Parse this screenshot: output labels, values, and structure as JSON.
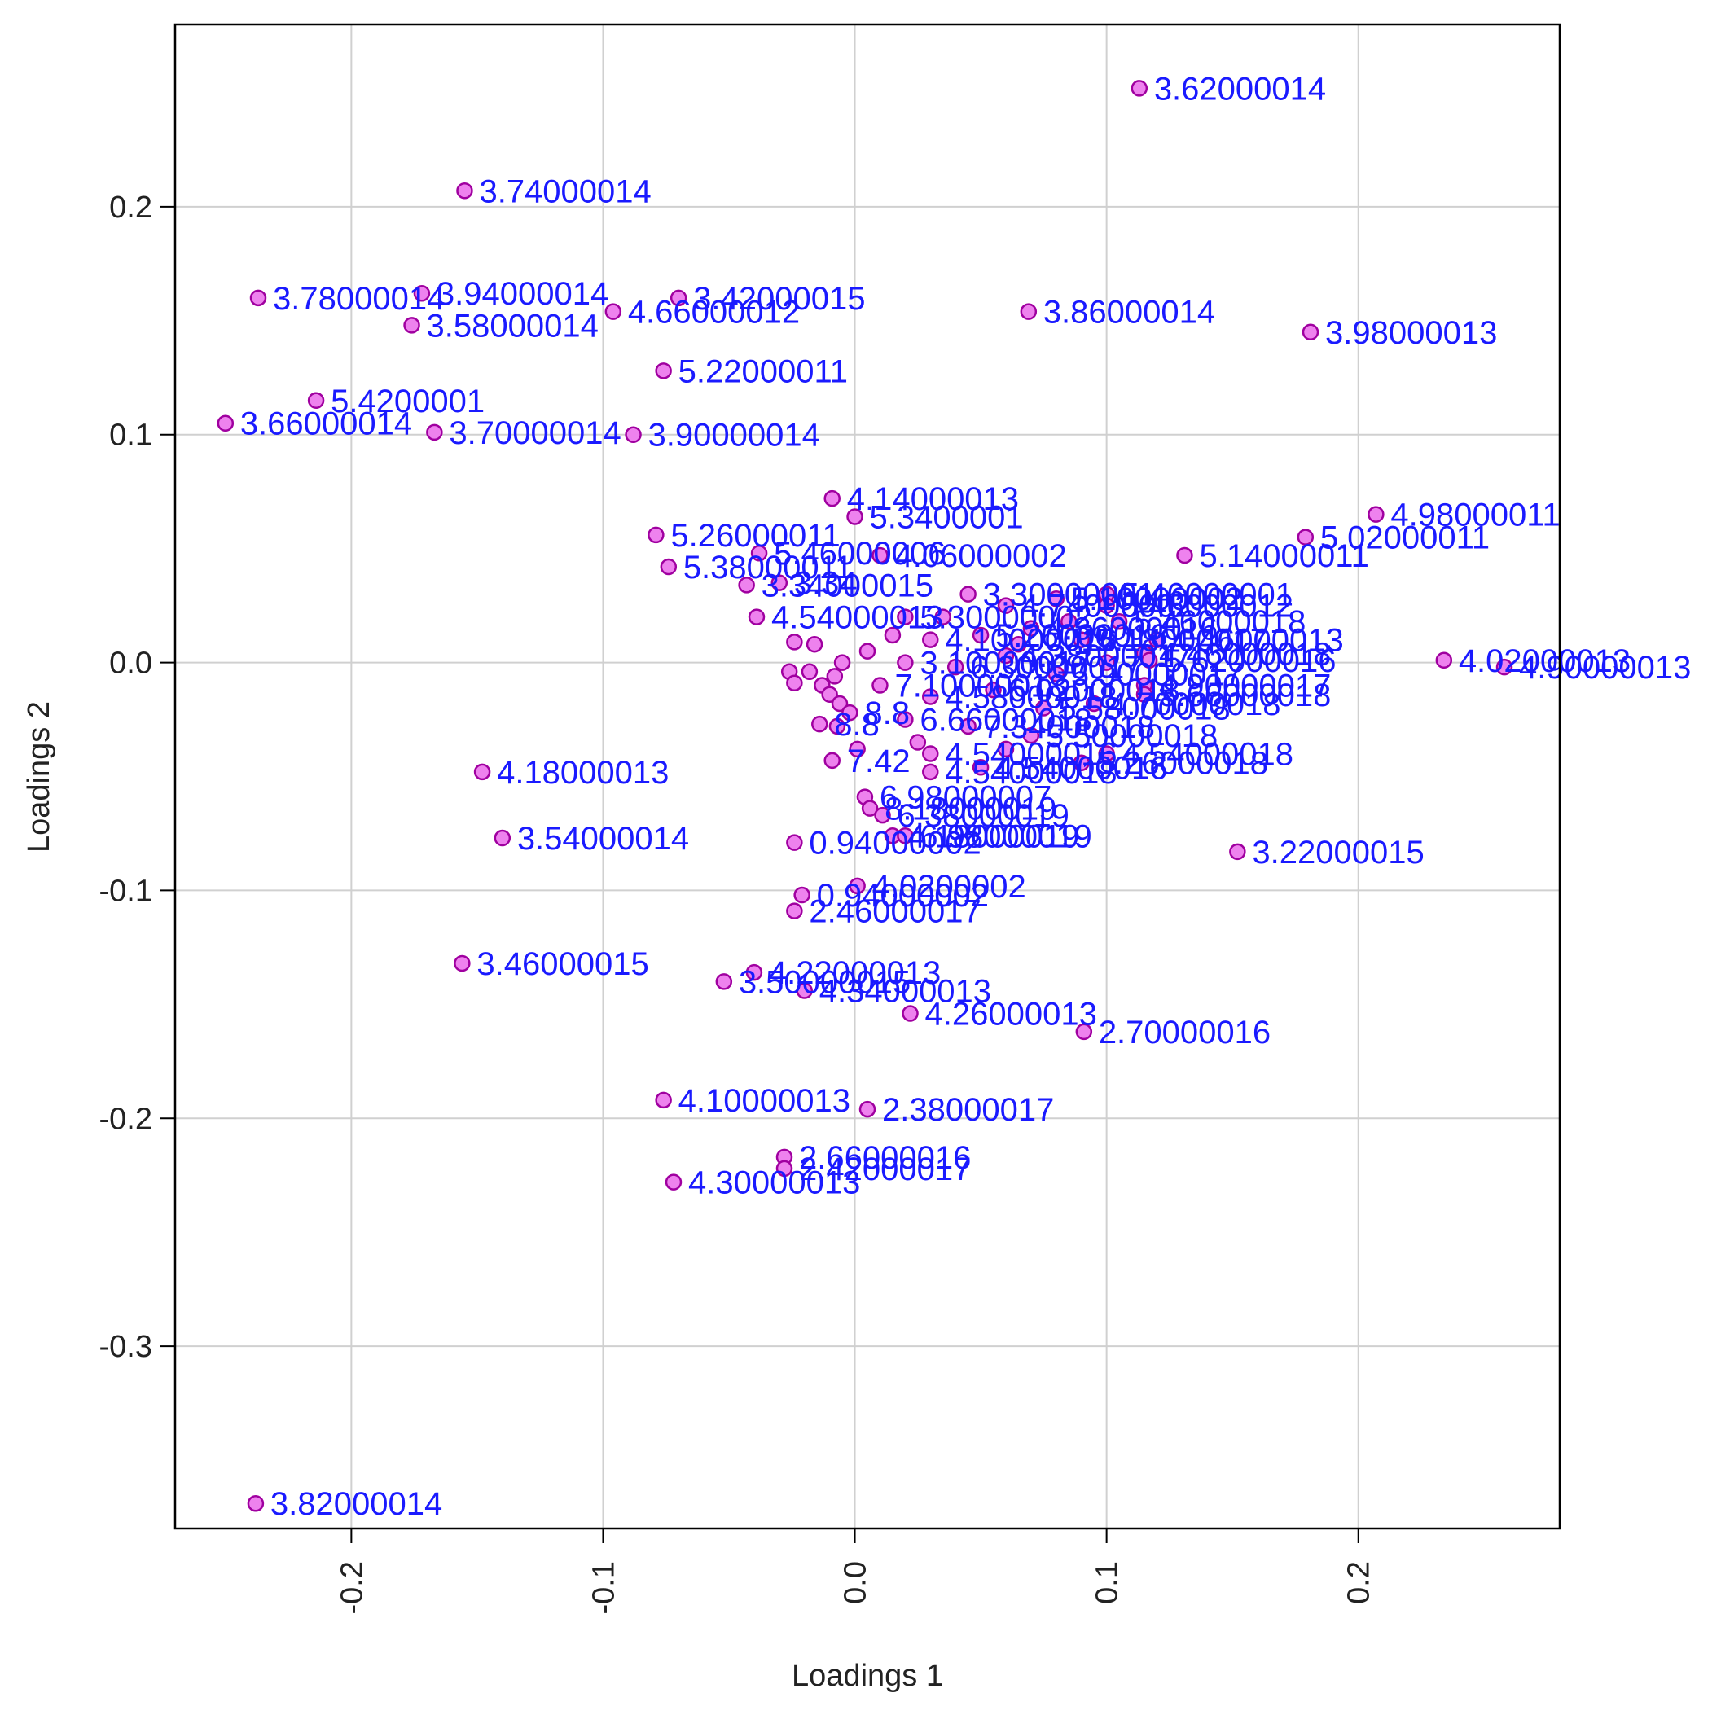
{
  "chart_data": {
    "type": "scatter",
    "title": "",
    "xlabel": "Loadings 1",
    "ylabel": "Loadings 2",
    "xlim": [
      -0.27,
      0.28
    ],
    "ylim": [
      -0.38,
      0.28
    ],
    "xticks": [
      -0.2,
      -0.1,
      0.0,
      0.1,
      0.2
    ],
    "xtick_labels": [
      "-0.2",
      "-0.1",
      "0.0",
      "0.1",
      "0.2"
    ],
    "yticks": [
      -0.3,
      -0.2,
      -0.1,
      0.0,
      0.1,
      0.2
    ],
    "ytick_labels": [
      "-0.3",
      "-0.2",
      "-0.1",
      "0.0",
      "0.1",
      "0.2"
    ],
    "grid": true,
    "colors": {
      "point_fill": "#ee82ee",
      "point_stroke": "#a000a0",
      "label": "#1a1aff",
      "grid": "#d0d0d0"
    },
    "points": [
      {
        "x": 0.113,
        "y": 0.252,
        "label": "3.62000014"
      },
      {
        "x": -0.155,
        "y": 0.207,
        "label": "3.74000014"
      },
      {
        "x": -0.237,
        "y": 0.16,
        "label": "3.78000014"
      },
      {
        "x": -0.172,
        "y": 0.162,
        "label": "3.94000014"
      },
      {
        "x": -0.176,
        "y": 0.148,
        "label": "3.58000014"
      },
      {
        "x": -0.07,
        "y": 0.16,
        "label": "3.42000015"
      },
      {
        "x": -0.096,
        "y": 0.154,
        "label": "4.66000012"
      },
      {
        "x": 0.069,
        "y": 0.154,
        "label": "3.86000014"
      },
      {
        "x": 0.181,
        "y": 0.145,
        "label": "3.98000013"
      },
      {
        "x": -0.076,
        "y": 0.128,
        "label": "5.22000011"
      },
      {
        "x": -0.214,
        "y": 0.115,
        "label": "5.4200001"
      },
      {
        "x": -0.25,
        "y": 0.105,
        "label": "3.66000014"
      },
      {
        "x": -0.167,
        "y": 0.101,
        "label": "3.70000014"
      },
      {
        "x": -0.088,
        "y": 0.1,
        "label": "3.90000014"
      },
      {
        "x": -0.009,
        "y": 0.072,
        "label": "4.14000013"
      },
      {
        "x": 0.0,
        "y": 0.064,
        "label": "5.3400001"
      },
      {
        "x": 0.207,
        "y": 0.065,
        "label": "4.98000011"
      },
      {
        "x": 0.179,
        "y": 0.055,
        "label": "5.02000011"
      },
      {
        "x": -0.079,
        "y": 0.056,
        "label": "5.26000011"
      },
      {
        "x": -0.038,
        "y": 0.048,
        "label": "5.46000006"
      },
      {
        "x": 0.131,
        "y": 0.047,
        "label": "5.14000011"
      },
      {
        "x": -0.074,
        "y": 0.042,
        "label": "5.38000011"
      },
      {
        "x": 0.01,
        "y": 0.047,
        "label": "4.06000002"
      },
      {
        "x": -0.043,
        "y": 0.034,
        "label": "3.34000015"
      },
      {
        "x": -0.03,
        "y": 0.035,
        "label": "3.34"
      },
      {
        "x": -0.039,
        "y": 0.02,
        "label": "4.54000013"
      },
      {
        "x": 0.1,
        "y": 0.03,
        "label": "5.46000001"
      },
      {
        "x": 0.1,
        "y": 0.025,
        "label": "5.46000012"
      },
      {
        "x": 0.105,
        "y": 0.018,
        "label": "5.46000018"
      },
      {
        "x": 0.12,
        "y": 0.01,
        "label": "4.46000013"
      },
      {
        "x": 0.115,
        "y": 0.004,
        "label": "4.46000018"
      },
      {
        "x": 0.117,
        "y": 0.001,
        "label": "5.62000016"
      },
      {
        "x": 0.234,
        "y": 0.001,
        "label": "4.02000013"
      },
      {
        "x": 0.258,
        "y": -0.002,
        "label": "4.90000013"
      },
      {
        "x": 0.115,
        "y": -0.01,
        "label": "4.90000017"
      },
      {
        "x": 0.115,
        "y": -0.014,
        "label": "5.66000018"
      },
      {
        "x": -0.024,
        "y": 0.009,
        "label": ""
      },
      {
        "x": -0.016,
        "y": 0.008,
        "label": ""
      },
      {
        "x": -0.026,
        "y": -0.004,
        "label": ""
      },
      {
        "x": -0.024,
        "y": -0.009,
        "label": ""
      },
      {
        "x": -0.018,
        "y": -0.004,
        "label": ""
      },
      {
        "x": -0.013,
        "y": -0.01,
        "label": ""
      },
      {
        "x": -0.01,
        "y": -0.014,
        "label": ""
      },
      {
        "x": -0.006,
        "y": -0.018,
        "label": ""
      },
      {
        "x": -0.002,
        "y": -0.022,
        "label": "8.8"
      },
      {
        "x": -0.014,
        "y": -0.027,
        "label": "8.8"
      },
      {
        "x": -0.007,
        "y": -0.028,
        "label": ""
      },
      {
        "x": -0.009,
        "y": -0.043,
        "label": "7.42"
      },
      {
        "x": 0.001,
        "y": -0.038,
        "label": ""
      },
      {
        "x": 0.03,
        "y": -0.04,
        "label": "4.54000016"
      },
      {
        "x": 0.05,
        "y": -0.046,
        "label": "4.54000016"
      },
      {
        "x": 0.09,
        "y": -0.044,
        "label": "5.26000018"
      },
      {
        "x": 0.1,
        "y": -0.04,
        "label": "4.54000018"
      },
      {
        "x": 0.03,
        "y": -0.048,
        "label": "4.54000018"
      },
      {
        "x": 0.004,
        "y": -0.059,
        "label": "6.98000007"
      },
      {
        "x": 0.006,
        "y": -0.064,
        "label": "8.18000019"
      },
      {
        "x": 0.011,
        "y": -0.067,
        "label": "6.38000019"
      },
      {
        "x": -0.024,
        "y": -0.079,
        "label": "0.94000002"
      },
      {
        "x": 0.015,
        "y": -0.076,
        "label": "4.18000019"
      },
      {
        "x": 0.02,
        "y": -0.076,
        "label": "6.98000019"
      },
      {
        "x": 0.152,
        "y": -0.083,
        "label": "3.22000015"
      },
      {
        "x": -0.148,
        "y": -0.048,
        "label": "4.18000013"
      },
      {
        "x": -0.14,
        "y": -0.077,
        "label": "3.54000014"
      },
      {
        "x": 0.001,
        "y": -0.098,
        "label": "4.0200002"
      },
      {
        "x": -0.021,
        "y": -0.102,
        "label": "0.94000002"
      },
      {
        "x": -0.024,
        "y": -0.109,
        "label": "2.46000017"
      },
      {
        "x": -0.156,
        "y": -0.132,
        "label": "3.46000015"
      },
      {
        "x": -0.04,
        "y": -0.136,
        "label": "4.22000013"
      },
      {
        "x": -0.052,
        "y": -0.14,
        "label": "3.50000015"
      },
      {
        "x": -0.02,
        "y": -0.144,
        "label": "4.34000013"
      },
      {
        "x": 0.022,
        "y": -0.154,
        "label": "4.26000013"
      },
      {
        "x": 0.091,
        "y": -0.162,
        "label": "2.70000016"
      },
      {
        "x": -0.076,
        "y": -0.192,
        "label": "4.10000013"
      },
      {
        "x": 0.005,
        "y": -0.196,
        "label": "2.38000017"
      },
      {
        "x": -0.028,
        "y": -0.217,
        "label": "2.66000016"
      },
      {
        "x": -0.028,
        "y": -0.222,
        "label": "2.42000017"
      },
      {
        "x": -0.072,
        "y": -0.228,
        "label": "4.30000013"
      },
      {
        "x": -0.238,
        "y": -0.369,
        "label": "3.82000014"
      }
    ],
    "dense_cluster": {
      "note_visible_labels": "",
      "points": [
        {
          "x": 0.02,
          "y": 0.02,
          "label": "5.30000002"
        },
        {
          "x": 0.045,
          "y": 0.03,
          "label": "3.30000001"
        },
        {
          "x": 0.06,
          "y": 0.025,
          "label": "4.74000002"
        },
        {
          "x": 0.08,
          "y": 0.028,
          "label": "5.10000002"
        },
        {
          "x": 0.03,
          "y": 0.01,
          "label": "4.10000016"
        },
        {
          "x": 0.05,
          "y": 0.012,
          "label": "5.26000016"
        },
        {
          "x": 0.07,
          "y": 0.015,
          "label": "4.86000016"
        },
        {
          "x": 0.09,
          "y": 0.01,
          "label": "5.18000017"
        },
        {
          "x": 0.02,
          "y": 0.0,
          "label": "3.10000017"
        },
        {
          "x": 0.04,
          "y": -0.002,
          "label": "6.30000017"
        },
        {
          "x": 0.06,
          "y": 0.003,
          "label": "4.38000017"
        },
        {
          "x": 0.08,
          "y": -0.005,
          "label": "5.90000017"
        },
        {
          "x": 0.01,
          "y": -0.01,
          "label": "7.10000018"
        },
        {
          "x": 0.03,
          "y": -0.015,
          "label": "4.58000018"
        },
        {
          "x": 0.055,
          "y": -0.012,
          "label": "6.02000018"
        },
        {
          "x": 0.075,
          "y": -0.02,
          "label": "5.58000018"
        },
        {
          "x": 0.095,
          "y": -0.018,
          "label": "4.70000018"
        },
        {
          "x": 0.02,
          "y": -0.025,
          "label": "6.66000018"
        },
        {
          "x": 0.045,
          "y": -0.028,
          "label": "7.34000018"
        },
        {
          "x": 0.07,
          "y": -0.032,
          "label": "5.50000018"
        },
        {
          "x": 0.005,
          "y": 0.005,
          "label": ""
        },
        {
          "x": -0.005,
          "y": 0.0,
          "label": ""
        },
        {
          "x": -0.008,
          "y": -0.006,
          "label": ""
        },
        {
          "x": 0.015,
          "y": 0.012,
          "label": ""
        },
        {
          "x": 0.035,
          "y": 0.02,
          "label": ""
        },
        {
          "x": 0.065,
          "y": 0.008,
          "label": ""
        },
        {
          "x": 0.085,
          "y": 0.018,
          "label": ""
        },
        {
          "x": 0.1,
          "y": 0.0,
          "label": ""
        },
        {
          "x": 0.025,
          "y": -0.035,
          "label": ""
        },
        {
          "x": 0.06,
          "y": -0.038,
          "label": ""
        }
      ]
    }
  }
}
